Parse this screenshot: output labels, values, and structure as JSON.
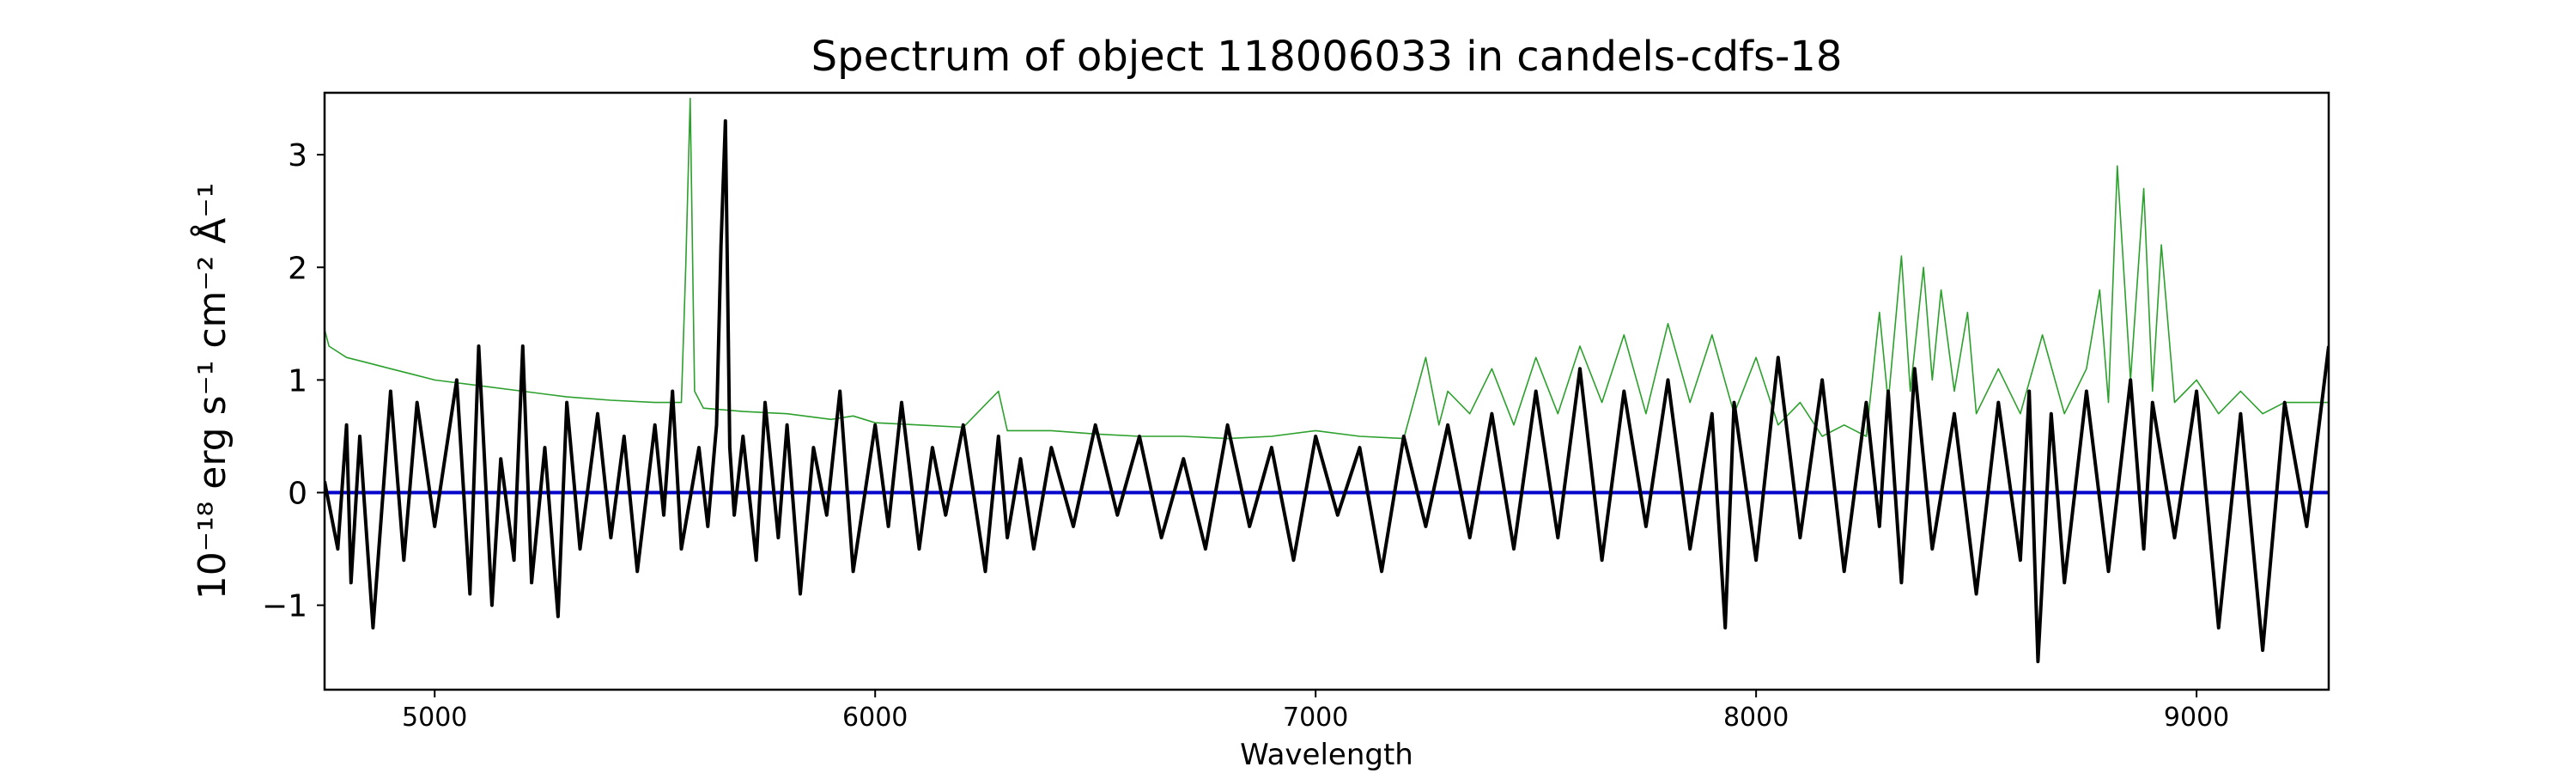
{
  "chart_data": {
    "type": "line",
    "title": "Spectrum of object 118006033 in candels-cdfs-18",
    "xlabel": "Wavelength",
    "ylabel": "10⁻¹⁸ erg s⁻¹ cm⁻² Å⁻¹",
    "xlim": [
      4750,
      9300
    ],
    "ylim": [
      -1.75,
      3.55
    ],
    "xticks": [
      5000,
      6000,
      7000,
      8000,
      9000
    ],
    "yticks": [
      -1,
      0,
      1,
      2,
      3
    ],
    "grid": false,
    "legend": "none",
    "series": [
      {
        "color": "#000000",
        "line_width": "thick",
        "x": [
          4750,
          4780,
          4800,
          4810,
          4830,
          4860,
          4900,
          4930,
          4960,
          5000,
          5050,
          5080,
          5100,
          5130,
          5150,
          5180,
          5200,
          5220,
          5250,
          5280,
          5300,
          5330,
          5370,
          5400,
          5430,
          5460,
          5500,
          5520,
          5540,
          5560,
          5600,
          5620,
          5640,
          5650,
          5660,
          5670,
          5680,
          5700,
          5730,
          5750,
          5780,
          5800,
          5830,
          5860,
          5890,
          5920,
          5950,
          6000,
          6030,
          6060,
          6100,
          6130,
          6160,
          6200,
          6250,
          6280,
          6300,
          6330,
          6360,
          6400,
          6450,
          6500,
          6550,
          6600,
          6650,
          6700,
          6750,
          6800,
          6850,
          6900,
          6950,
          7000,
          7050,
          7100,
          7150,
          7200,
          7250,
          7300,
          7350,
          7400,
          7450,
          7500,
          7550,
          7600,
          7650,
          7700,
          7750,
          7800,
          7850,
          7900,
          7930,
          7950,
          8000,
          8050,
          8100,
          8150,
          8200,
          8250,
          8280,
          8300,
          8330,
          8360,
          8400,
          8450,
          8500,
          8550,
          8600,
          8620,
          8640,
          8670,
          8700,
          8750,
          8800,
          8850,
          8880,
          8900,
          8950,
          9000,
          9050,
          9100,
          9150,
          9200,
          9250,
          9300
        ],
        "y": [
          0.1,
          -0.5,
          0.6,
          -0.8,
          0.5,
          -1.2,
          0.9,
          -0.6,
          0.8,
          -0.3,
          1.0,
          -0.9,
          1.3,
          -1.0,
          0.3,
          -0.6,
          1.3,
          -0.8,
          0.4,
          -1.1,
          0.8,
          -0.5,
          0.7,
          -0.4,
          0.5,
          -0.7,
          0.6,
          -0.2,
          0.9,
          -0.5,
          0.4,
          -0.3,
          0.6,
          2.2,
          3.3,
          0.4,
          -0.2,
          0.5,
          -0.6,
          0.8,
          -0.4,
          0.6,
          -0.9,
          0.4,
          -0.2,
          0.9,
          -0.7,
          0.6,
          -0.3,
          0.8,
          -0.5,
          0.4,
          -0.2,
          0.6,
          -0.7,
          0.5,
          -0.4,
          0.3,
          -0.5,
          0.4,
          -0.3,
          0.6,
          -0.2,
          0.5,
          -0.4,
          0.3,
          -0.5,
          0.6,
          -0.3,
          0.4,
          -0.6,
          0.5,
          -0.2,
          0.4,
          -0.7,
          0.5,
          -0.3,
          0.6,
          -0.4,
          0.7,
          -0.5,
          0.9,
          -0.4,
          1.1,
          -0.6,
          0.9,
          -0.3,
          1.0,
          -0.5,
          0.7,
          -1.2,
          0.8,
          -0.6,
          1.2,
          -0.4,
          1.0,
          -0.7,
          0.8,
          -0.3,
          0.9,
          -0.8,
          1.1,
          -0.5,
          0.7,
          -0.9,
          0.8,
          -0.6,
          0.9,
          -1.5,
          0.7,
          -0.8,
          0.9,
          -0.7,
          1.0,
          -0.5,
          0.8,
          -0.4,
          0.9,
          -1.2,
          0.7,
          -1.4,
          0.8,
          -0.3,
          1.3
        ]
      },
      {
        "color": "#2ca02c",
        "line_width": "thin",
        "x": [
          4740,
          4760,
          4800,
          4850,
          4900,
          4950,
          5000,
          5100,
          5200,
          5300,
          5400,
          5500,
          5560,
          5570,
          5580,
          5590,
          5610,
          5700,
          5800,
          5900,
          5950,
          6000,
          6100,
          6200,
          6280,
          6300,
          6400,
          6500,
          6600,
          6700,
          6800,
          6900,
          7000,
          7100,
          7200,
          7250,
          7280,
          7300,
          7350,
          7400,
          7450,
          7500,
          7550,
          7600,
          7650,
          7700,
          7750,
          7800,
          7850,
          7900,
          7950,
          8000,
          8050,
          8100,
          8150,
          8200,
          8250,
          8280,
          8300,
          8330,
          8350,
          8380,
          8400,
          8420,
          8450,
          8480,
          8500,
          8550,
          8600,
          8650,
          8700,
          8750,
          8780,
          8800,
          8820,
          8850,
          8880,
          8900,
          8920,
          8950,
          9000,
          9050,
          9100,
          9150,
          9200,
          9250,
          9300
        ],
        "y": [
          1.6,
          1.3,
          1.2,
          1.15,
          1.1,
          1.05,
          1.0,
          0.95,
          0.9,
          0.85,
          0.82,
          0.8,
          0.8,
          2.0,
          3.5,
          0.9,
          0.75,
          0.72,
          0.7,
          0.65,
          0.68,
          0.62,
          0.6,
          0.58,
          0.9,
          0.55,
          0.55,
          0.52,
          0.5,
          0.5,
          0.48,
          0.5,
          0.55,
          0.5,
          0.48,
          1.2,
          0.6,
          0.9,
          0.7,
          1.1,
          0.6,
          1.2,
          0.7,
          1.3,
          0.8,
          1.4,
          0.7,
          1.5,
          0.8,
          1.4,
          0.7,
          1.2,
          0.6,
          0.8,
          0.5,
          0.6,
          0.5,
          1.6,
          0.8,
          2.1,
          0.9,
          2.0,
          1.0,
          1.8,
          0.9,
          1.6,
          0.7,
          1.1,
          0.7,
          1.4,
          0.7,
          1.1,
          1.8,
          0.8,
          2.9,
          1.0,
          2.7,
          0.9,
          2.2,
          0.8,
          1.0,
          0.7,
          0.9,
          0.7,
          0.8,
          0.8,
          0.8
        ]
      },
      {
        "color": "#0000cc",
        "line_width": "thick",
        "x": [
          4750,
          9300
        ],
        "y": [
          0,
          0
        ]
      }
    ]
  }
}
